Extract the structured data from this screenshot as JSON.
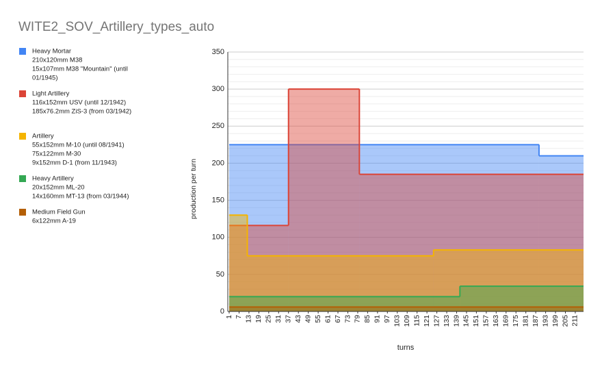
{
  "chart_data": {
    "type": "step-area",
    "title": "WITE2_SOV_Artillery_types_auto",
    "x_label": "turns",
    "y_label": "production per turn",
    "xlim": [
      1,
      216
    ],
    "ylim": [
      0,
      350
    ],
    "xticks": [
      1,
      7,
      13,
      19,
      25,
      31,
      37,
      43,
      49,
      55,
      61,
      67,
      73,
      79,
      85,
      91,
      97,
      103,
      109,
      115,
      121,
      127,
      133,
      139,
      145,
      151,
      157,
      163,
      169,
      175,
      181,
      187,
      193,
      199,
      205,
      211
    ],
    "yticks": [
      0,
      50,
      100,
      150,
      200,
      250,
      300,
      350
    ],
    "minor_yticks": [
      10,
      20,
      30,
      40,
      60,
      70,
      80,
      90,
      110,
      120,
      130,
      140,
      160,
      170,
      180,
      190,
      210,
      220,
      230,
      240,
      260,
      270,
      280,
      290,
      310,
      320,
      330,
      340
    ],
    "grid": true,
    "series": [
      {
        "name": "Heavy Mortar",
        "color": "#4285f4",
        "legend_lines": [
          "210x120mm M38",
          "15x107mm M38 \"Mountain\" (until",
          "01/1945)"
        ],
        "x": [
          1,
          189
        ],
        "values": [
          225,
          210
        ]
      },
      {
        "name": "Light Artillery",
        "color": "#db4437",
        "legend_lines": [
          "116x152mm USV (until 12/1942)",
          "185x76.2mm ZiS-3 (from 03/1942)"
        ],
        "x": [
          1,
          37,
          80
        ],
        "values": [
          116,
          300,
          185
        ]
      },
      {
        "name": "Artillery",
        "color": "#f4b400",
        "legend_lines": [
          "55x152mm M-10 (until 08/1941)",
          "75x122mm M-30",
          "9x152mm D-1 (from 11/1943)"
        ],
        "x": [
          1,
          12,
          125
        ],
        "values": [
          130,
          75,
          83
        ]
      },
      {
        "name": "Heavy Artillery",
        "color": "#34a853",
        "legend_lines": [
          "20x152mm ML-20",
          "14x160mm MT-13 (from 03/1944)"
        ],
        "x": [
          1,
          141
        ],
        "values": [
          20,
          34
        ]
      },
      {
        "name": "Medium Field Gun",
        "color": "#b45f06",
        "legend_lines": [
          "6x122mm A-19"
        ],
        "x": [
          1
        ],
        "values": [
          6
        ]
      }
    ]
  }
}
